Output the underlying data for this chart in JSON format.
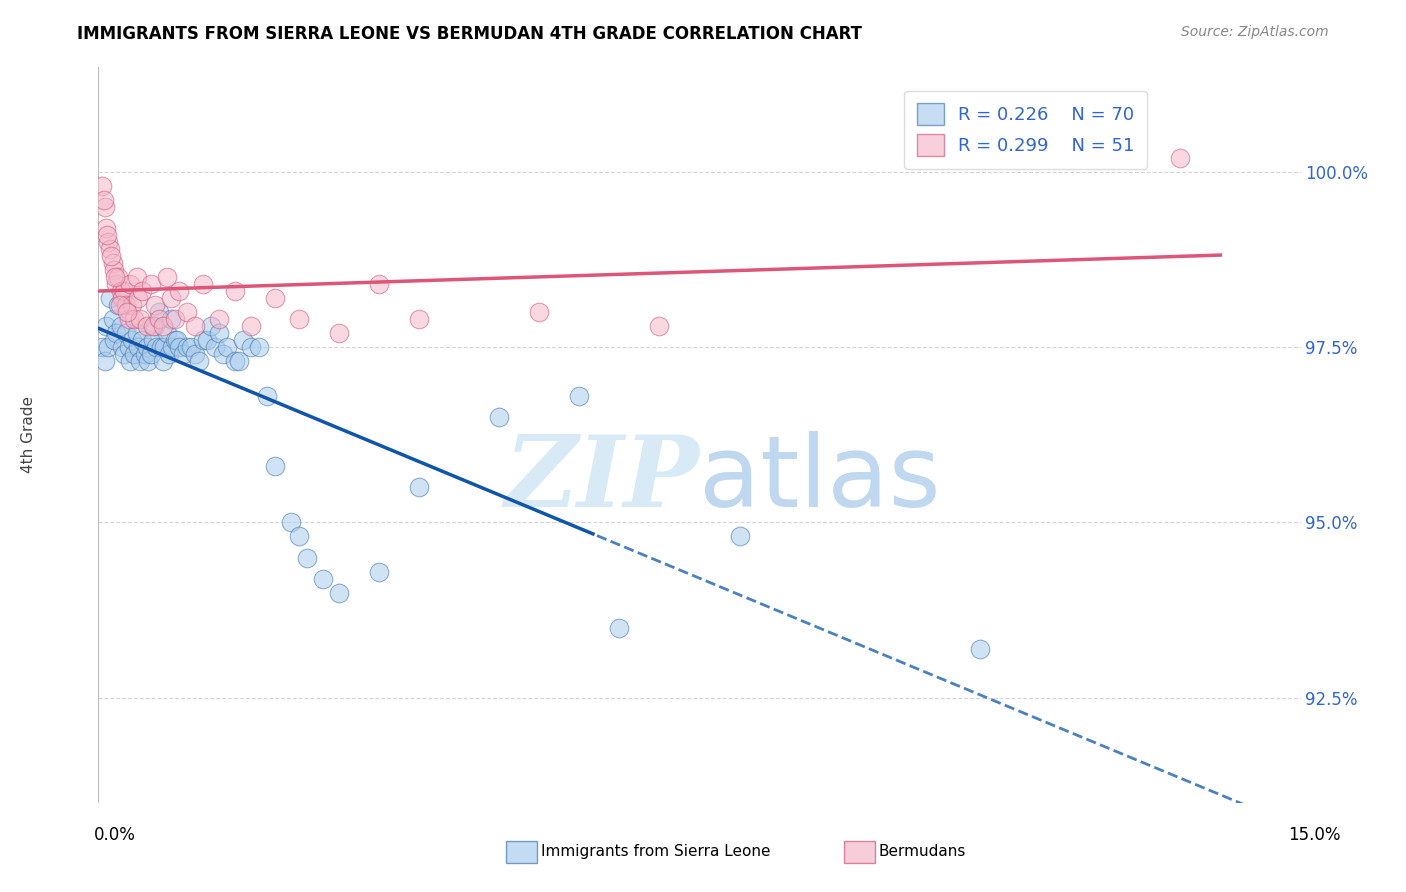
{
  "title": "IMMIGRANTS FROM SIERRA LEONE VS BERMUDAN 4TH GRADE CORRELATION CHART",
  "source": "Source: ZipAtlas.com",
  "ylabel": "4th Grade",
  "yticks": [
    92.5,
    95.0,
    97.5,
    100.0
  ],
  "ytick_labels": [
    "92.5%",
    "95.0%",
    "97.5%",
    "100.0%"
  ],
  "xmin": 0.0,
  "xmax": 15.0,
  "ymin": 91.0,
  "ymax": 101.5,
  "legend_blue_r": "R = 0.226",
  "legend_blue_n": "N = 70",
  "legend_pink_r": "R = 0.299",
  "legend_pink_n": "N = 51",
  "blue_color": "#aaccee",
  "pink_color": "#f5b8cb",
  "blue_edge_color": "#4477aa",
  "pink_edge_color": "#cc5577",
  "blue_line_color": "#1155aa",
  "pink_line_color": "#dd5577",
  "legend_text_color": "#3366cc",
  "blue_scatter_x": [
    0.05,
    0.08,
    0.1,
    0.12,
    0.15,
    0.18,
    0.2,
    0.22,
    0.25,
    0.28,
    0.3,
    0.32,
    0.35,
    0.38,
    0.4,
    0.42,
    0.45,
    0.48,
    0.5,
    0.52,
    0.55,
    0.58,
    0.6,
    0.62,
    0.65,
    0.68,
    0.7,
    0.72,
    0.75,
    0.78,
    0.8,
    0.82,
    0.85,
    0.88,
    0.9,
    0.92,
    0.95,
    0.98,
    1.0,
    1.05,
    1.1,
    1.15,
    1.2,
    1.25,
    1.3,
    1.35,
    1.4,
    1.45,
    1.5,
    1.55,
    1.6,
    1.7,
    1.75,
    1.8,
    1.9,
    2.0,
    2.1,
    2.2,
    2.4,
    2.5,
    2.6,
    2.8,
    3.0,
    3.5,
    4.0,
    5.0,
    6.0,
    6.5,
    8.0,
    11.0
  ],
  "blue_scatter_y": [
    97.5,
    97.3,
    97.8,
    97.5,
    98.2,
    97.9,
    97.6,
    97.7,
    98.1,
    97.8,
    97.5,
    97.4,
    97.7,
    97.5,
    97.3,
    97.6,
    97.4,
    97.7,
    97.5,
    97.3,
    97.6,
    97.4,
    97.5,
    97.3,
    97.4,
    97.6,
    97.8,
    97.5,
    98.0,
    97.5,
    97.3,
    97.5,
    97.7,
    97.4,
    97.9,
    97.5,
    97.6,
    97.6,
    97.5,
    97.4,
    97.5,
    97.5,
    97.4,
    97.3,
    97.6,
    97.6,
    97.8,
    97.5,
    97.7,
    97.4,
    97.5,
    97.3,
    97.3,
    97.6,
    97.5,
    97.5,
    96.8,
    95.8,
    95.0,
    94.8,
    94.5,
    94.2,
    94.0,
    94.3,
    95.5,
    96.5,
    96.8,
    93.5,
    94.8,
    93.2
  ],
  "pink_scatter_x": [
    0.05,
    0.08,
    0.1,
    0.12,
    0.15,
    0.18,
    0.2,
    0.22,
    0.25,
    0.28,
    0.3,
    0.32,
    0.35,
    0.38,
    0.4,
    0.42,
    0.45,
    0.48,
    0.5,
    0.52,
    0.55,
    0.6,
    0.65,
    0.68,
    0.7,
    0.75,
    0.8,
    0.85,
    0.9,
    0.95,
    1.0,
    1.1,
    1.2,
    1.3,
    1.5,
    1.7,
    1.9,
    2.2,
    2.5,
    3.0,
    3.5,
    4.0,
    5.5,
    7.0,
    13.5,
    0.07,
    0.11,
    0.16,
    0.21,
    0.27,
    0.36
  ],
  "pink_scatter_y": [
    99.8,
    99.5,
    99.2,
    99.0,
    98.9,
    98.7,
    98.6,
    98.4,
    98.5,
    98.3,
    98.2,
    98.3,
    98.1,
    97.9,
    98.4,
    98.1,
    97.9,
    98.5,
    98.2,
    97.9,
    98.3,
    97.8,
    98.4,
    97.8,
    98.1,
    97.9,
    97.8,
    98.5,
    98.2,
    97.9,
    98.3,
    98.0,
    97.8,
    98.4,
    97.9,
    98.3,
    97.8,
    98.2,
    97.9,
    97.7,
    98.4,
    97.9,
    98.0,
    97.8,
    100.2,
    99.6,
    99.1,
    98.8,
    98.5,
    98.1,
    98.0
  ]
}
